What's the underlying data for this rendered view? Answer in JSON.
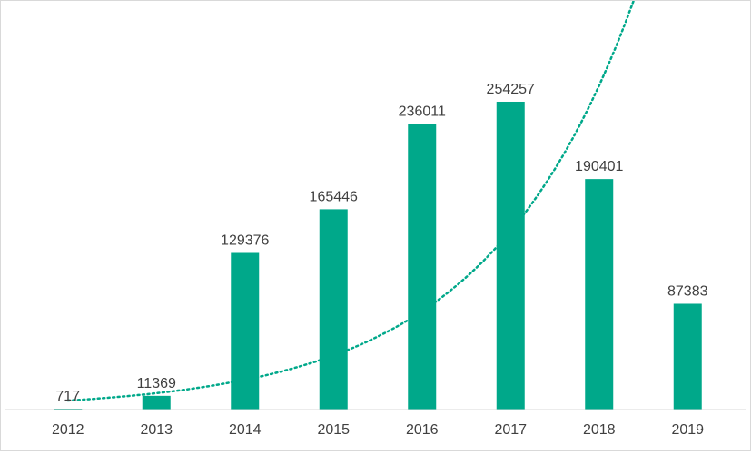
{
  "chart_data": {
    "type": "bar",
    "title": "",
    "xlabel": "",
    "ylabel": "",
    "categories": [
      "2012",
      "2013",
      "2014",
      "2015",
      "2016",
      "2017",
      "2018",
      "2019"
    ],
    "values": [
      717,
      11369,
      129376,
      165446,
      236011,
      254257,
      190401,
      87383
    ],
    "ylim": [
      0,
      330000
    ],
    "grid": false,
    "legend": "none",
    "trendline": {
      "type": "exponential",
      "style": "dotted",
      "color": "#00A88A"
    },
    "colors": {
      "bar": "#00A88A",
      "trendline": "#00A88A",
      "axis": "#D9D9D9",
      "text": "#404040"
    }
  }
}
